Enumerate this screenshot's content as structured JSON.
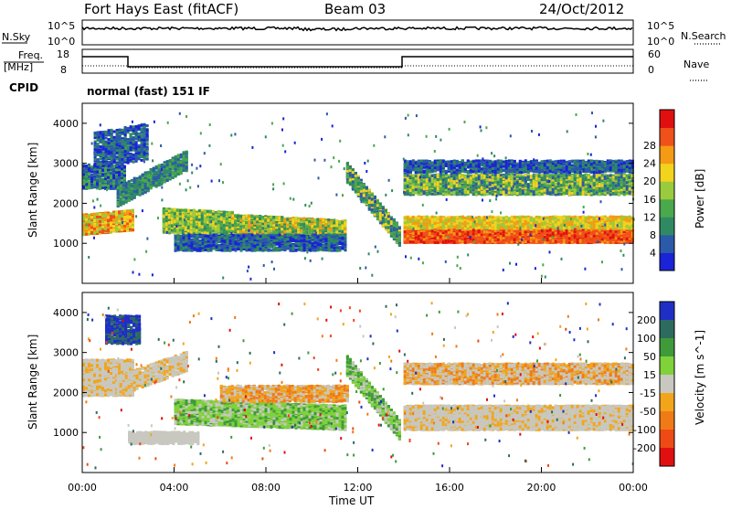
{
  "header": {
    "station": "Fort Hays East (fitACF)",
    "beam": "Beam 03",
    "date": "24/Oct/2012"
  },
  "noise_panel": {
    "left_label": "N.Sky",
    "right_label": "N.Search",
    "left_ticks": [
      "10^5",
      "10^0"
    ],
    "right_ticks": [
      "10^5",
      "10^0"
    ]
  },
  "freq_panel": {
    "left_label_1": "Freq.",
    "left_label_2": "[MHz]",
    "right_label": "Nave",
    "left_ticks": [
      "18",
      "8"
    ],
    "right_ticks": [
      "60",
      "0"
    ],
    "cpid_label": "CPID",
    "cpid_value": "normal (fast) 151 IF"
  },
  "colors": {
    "power_scale": [
      "#1a23d6",
      "#2b5aa8",
      "#2f8a63",
      "#4aa84d",
      "#9acb3d",
      "#f2d31e",
      "#f59a14",
      "#f0501a",
      "#e01010"
    ],
    "velocity_scale": [
      "#1f2fc6",
      "#2e6b5f",
      "#3f9a3a",
      "#7fd23a",
      "#c8c8c0",
      "#f2a51a",
      "#f07a16",
      "#ee4a16",
      "#e01010"
    ]
  },
  "chart_data": [
    {
      "type": "heatmap",
      "name": "Power",
      "ylabel": "Slant Range [km]",
      "colorbar_label": "Power [dB]",
      "colorbar_ticks": [
        "4",
        "8",
        "12",
        "16",
        "20",
        "24",
        "28"
      ],
      "yticks": [
        "1000",
        "2000",
        "3000",
        "4000"
      ],
      "xticks": [],
      "ylim": [
        0,
        4500
      ]
    },
    {
      "type": "heatmap",
      "name": "Velocity",
      "ylabel": "Slant Range [km]",
      "xlabel": "Time UT",
      "colorbar_label": "Velocity [m s^-1]",
      "colorbar_ticks": [
        "200",
        "100",
        "50",
        "15",
        "-15",
        "-50",
        "-100",
        "-200"
      ],
      "yticks": [
        "1000",
        "2000",
        "3000",
        "4000"
      ],
      "xticks": [
        "00:00",
        "04:00",
        "08:00",
        "12:00",
        "16:00",
        "20:00",
        "00:00"
      ],
      "ylim": [
        0,
        4500
      ]
    }
  ]
}
